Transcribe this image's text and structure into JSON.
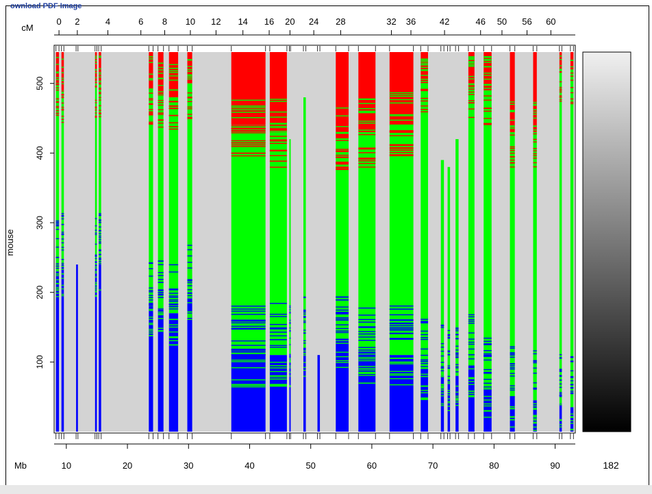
{
  "header": {
    "download_label": "ownload PDF Image"
  },
  "chart_data": {
    "type": "heatmap",
    "title": "",
    "ylabel": "mouse",
    "top_axis_label": "cM",
    "bottom_axis_label": "Mb",
    "colorbar_label": "182",
    "colors": {
      "red": "#ff0000",
      "green": "#00ff00",
      "blue": "#0000ff",
      "gray": "#d3d3d3"
    },
    "ylim": [
      0,
      545
    ],
    "yticks": [
      100,
      200,
      300,
      400,
      500
    ],
    "xlim": [
      8,
      93.3
    ],
    "xticks": [
      10,
      20,
      30,
      40,
      50,
      60,
      70,
      80,
      90
    ],
    "cm_ticks": [
      {
        "label": "0",
        "mb": 8.8
      },
      {
        "label": "2",
        "mb": 11.8
      },
      {
        "label": "4",
        "mb": 16.8
      },
      {
        "label": "6",
        "mb": 22.2
      },
      {
        "label": "8",
        "mb": 26.1
      },
      {
        "label": "10",
        "mb": 30.3
      },
      {
        "label": "12",
        "mb": 34.5
      },
      {
        "label": "14",
        "mb": 38.9
      },
      {
        "label": "16",
        "mb": 43.2
      },
      {
        "label": "20",
        "mb": 46.6
      },
      {
        "label": "24",
        "mb": 50.5
      },
      {
        "label": "28",
        "mb": 54.9
      },
      {
        "label": "32",
        "mb": 63.2
      },
      {
        "label": "36",
        "mb": 66.4
      },
      {
        "label": "42",
        "mb": 71.9
      },
      {
        "label": "46",
        "mb": 77.8
      },
      {
        "label": "50",
        "mb": 81.3
      },
      {
        "label": "56",
        "mb": 85.4
      },
      {
        "label": "60",
        "mb": 89.3
      }
    ],
    "blocks": [
      {
        "start": 8.3,
        "end": 8.8,
        "red": 545,
        "green": 500,
        "blue": 230
      },
      {
        "start": 9.2,
        "end": 9.6,
        "red": 545,
        "green": 490,
        "blue": 240
      },
      {
        "start": 11.6,
        "end": 11.9,
        "red": 0,
        "green": 0,
        "blue": 240
      },
      {
        "start": 14.7,
        "end": 15.0,
        "red": 545,
        "green": 500,
        "blue": 240
      },
      {
        "start": 15.3,
        "end": 15.7,
        "red": 545,
        "green": 500,
        "blue": 240
      },
      {
        "start": 23.5,
        "end": 24.2,
        "red": 545,
        "green": 490,
        "blue": 180
      },
      {
        "start": 25.0,
        "end": 25.9,
        "red": 545,
        "green": 485,
        "blue": 175
      },
      {
        "start": 26.8,
        "end": 28.3,
        "red": 545,
        "green": 480,
        "blue": 170
      },
      {
        "start": 29.8,
        "end": 30.6,
        "red": 545,
        "green": 500,
        "blue": 200
      },
      {
        "start": 37.0,
        "end": 42.6,
        "red": 545,
        "green": 440,
        "blue": 110
      },
      {
        "start": 43.3,
        "end": 46.1,
        "red": 545,
        "green": 430,
        "blue": 110
      },
      {
        "start": 46.5,
        "end": 46.7,
        "red": 0,
        "green": 420,
        "blue": 110
      },
      {
        "start": 48.8,
        "end": 49.2,
        "red": 0,
        "green": 480,
        "blue": 120
      },
      {
        "start": 51.1,
        "end": 51.5,
        "red": 0,
        "green": 0,
        "blue": 110
      },
      {
        "start": 54.1,
        "end": 56.2,
        "red": 545,
        "green": 420,
        "blue": 130
      },
      {
        "start": 57.8,
        "end": 60.6,
        "red": 545,
        "green": 430,
        "blue": 115
      },
      {
        "start": 62.9,
        "end": 66.8,
        "red": 545,
        "green": 440,
        "blue": 110
      },
      {
        "start": 68.0,
        "end": 69.2,
        "red": 545,
        "green": 500,
        "blue": 90
      },
      {
        "start": 71.3,
        "end": 71.8,
        "red": 0,
        "green": 390,
        "blue": 80
      },
      {
        "start": 72.4,
        "end": 72.8,
        "red": 0,
        "green": 380,
        "blue": 75
      },
      {
        "start": 73.7,
        "end": 74.2,
        "red": 0,
        "green": 420,
        "blue": 80
      },
      {
        "start": 75.8,
        "end": 76.8,
        "red": 545,
        "green": 500,
        "blue": 95
      },
      {
        "start": 78.3,
        "end": 79.6,
        "red": 545,
        "green": 490,
        "blue": 65
      },
      {
        "start": 82.6,
        "end": 83.4,
        "red": 545,
        "green": 430,
        "blue": 50
      },
      {
        "start": 86.4,
        "end": 87.0,
        "red": 545,
        "green": 430,
        "blue": 45
      },
      {
        "start": 90.7,
        "end": 91.1,
        "red": 545,
        "green": 520,
        "blue": 40
      },
      {
        "start": 92.5,
        "end": 93.0,
        "red": 545,
        "green": 520,
        "blue": 35
      }
    ]
  }
}
